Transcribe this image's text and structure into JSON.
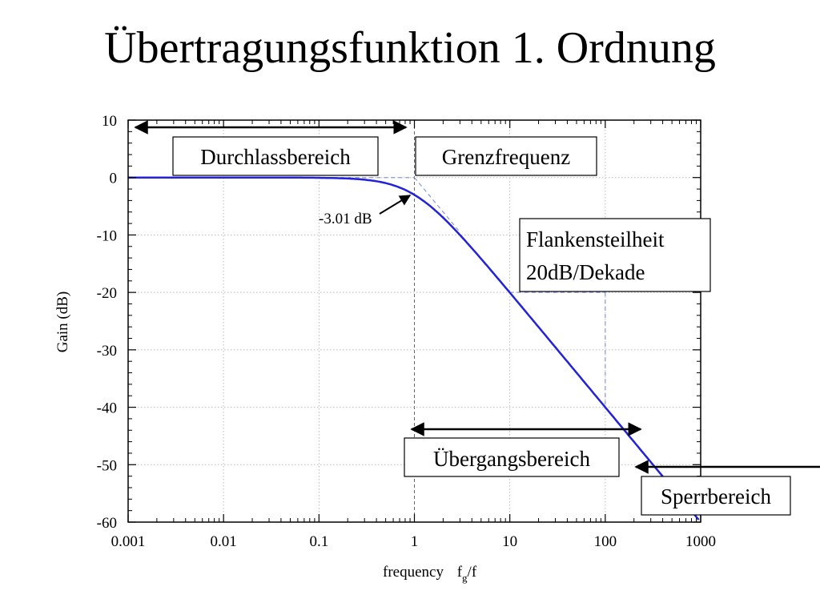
{
  "slide": {
    "title": "Übertragungsfunktion 1. Ordnung"
  },
  "chart_data": {
    "type": "line",
    "xscale": "log",
    "xlim": [
      0.001,
      1000
    ],
    "ylim": [
      -60,
      10
    ],
    "xticks": [
      0.001,
      0.01,
      0.1,
      1,
      10,
      100,
      1000
    ],
    "xtick_labels": [
      "0.001",
      "0.01",
      "0.1",
      "1",
      "10",
      "100",
      "1000"
    ],
    "yticks": [
      10,
      0,
      -10,
      -20,
      -30,
      -40,
      -50,
      -60
    ],
    "ytick_labels": [
      "10",
      "0",
      "-10",
      "-20",
      "-30",
      "-40",
      "-50",
      "-60"
    ],
    "xlabel": "frequency",
    "xlabel_suffix": "f",
    "xlabel_sub": "g",
    "xlabel_tail": "/f",
    "ylabel": "Gain (dB)",
    "grid": true,
    "curve_color": "#2222dd",
    "series": [
      {
        "name": "",
        "x": [
          0.001,
          0.01,
          0.05,
          0.1,
          0.2,
          0.3,
          0.5,
          0.7,
          1,
          1.5,
          2,
          3,
          5,
          7,
          10,
          20,
          50,
          100,
          200,
          300,
          500,
          1000
        ],
        "y": [
          0,
          0,
          -0.01,
          -0.04,
          -0.17,
          -0.37,
          -0.97,
          -1.73,
          -3.01,
          -5.12,
          -6.99,
          -10.0,
          -14.15,
          -17.0,
          -20.04,
          -26.02,
          -33.98,
          -40.0,
          -46.02,
          -49.54,
          -53.98,
          -60.0
        ]
      }
    ],
    "annotations": {
      "minus3db": "-3.01 dB",
      "durchlass": "Durchlassbereich",
      "grenz": "Grenzfrequenz",
      "flanke_line1": "Flankensteilheit",
      "flanke_line2": "20dB/Dekade",
      "uebergang": "Übergangsbereich",
      "sperr": "Sperrbereich"
    }
  }
}
